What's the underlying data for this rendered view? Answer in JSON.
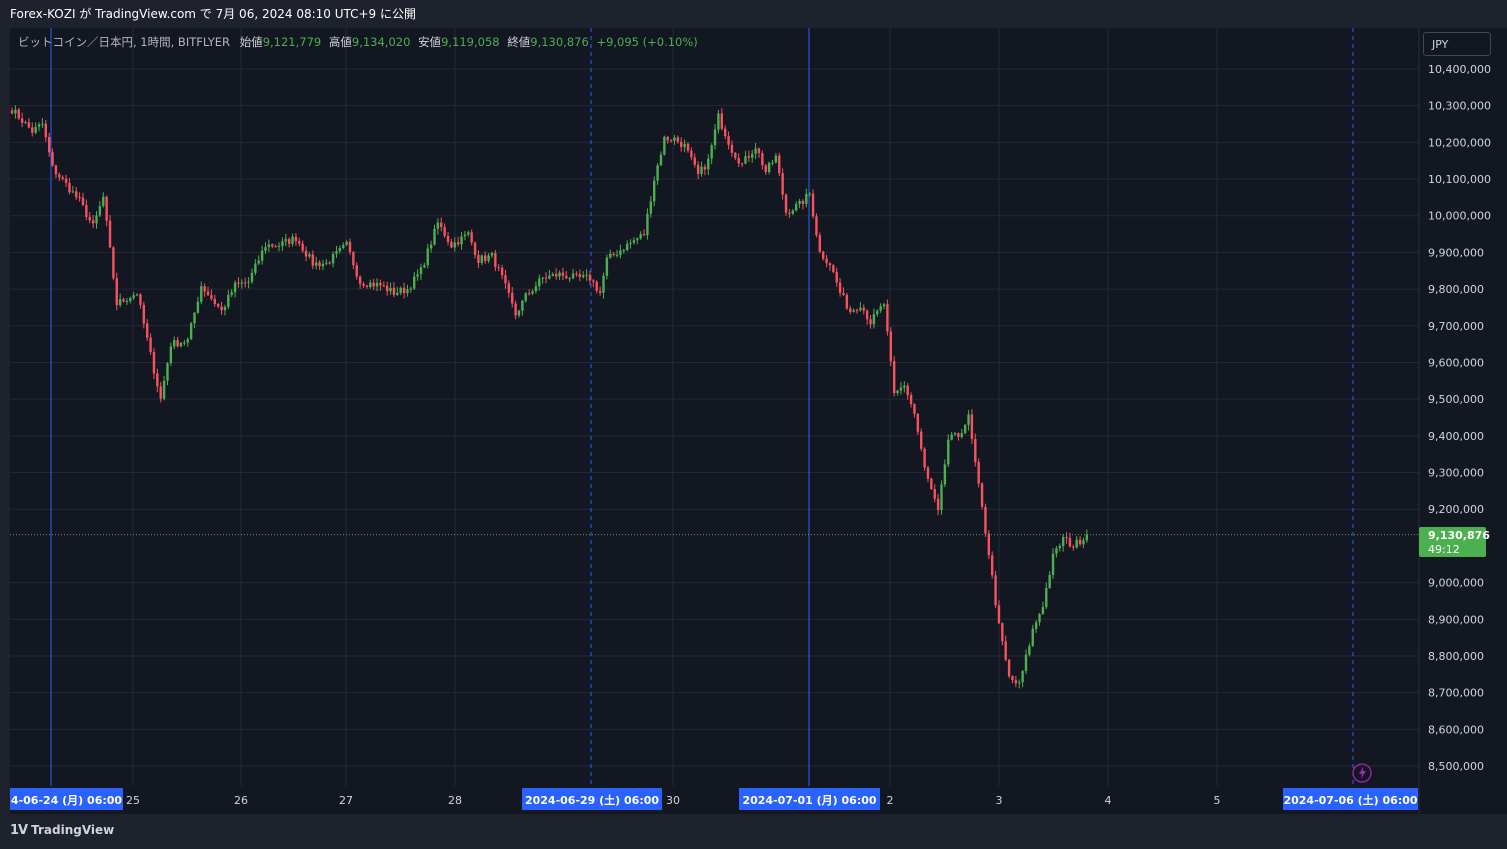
{
  "header": {
    "publish_text": "Forex-KOZI が TradingView.com で 7月 06, 2024 08:10 UTC+9 に公開"
  },
  "legend": {
    "symbol": "ビットコイン／日本円, 1時間, BITFLYER",
    "open_label": "始値",
    "open": "9,121,779",
    "high_label": "高値",
    "high": "9,134,020",
    "low_label": "安値",
    "low": "9,119,058",
    "close_label": "終値",
    "close": "9,130,876",
    "change": "+9,095 (+0.10%)"
  },
  "currency_button": "JPY",
  "price_tag": {
    "price": "9,130,876",
    "countdown": "49:12"
  },
  "footer": {
    "logo_text": "TradingView"
  },
  "colors": {
    "up": "#4caf50",
    "down": "#f7525f",
    "background": "#131722",
    "panel": "#1e222d",
    "grid": "#242832",
    "session_line": "#2962ff",
    "date_badge": "#2962ff",
    "price_tag": "#4caf50"
  },
  "chart_data": {
    "type": "candlestick",
    "interval": "1時間",
    "ylim": [
      8450000,
      10450000
    ],
    "y_ticks": [
      "10,400,000",
      "10,300,000",
      "10,200,000",
      "10,100,000",
      "10,000,000",
      "9,900,000",
      "9,800,000",
      "9,700,000",
      "9,600,000",
      "9,500,000",
      "9,400,000",
      "9,300,000",
      "9,200,000",
      "9,000,000",
      "8,900,000",
      "8,800,000",
      "8,700,000",
      "8,600,000",
      "8,500,000"
    ],
    "x_ticks": [
      "25",
      "26",
      "27",
      "28",
      "30",
      "2",
      "3",
      "4",
      "5"
    ],
    "date_badges": [
      "4-06-24 (月)   06:00",
      "2024-06-29 (土)   06:00",
      "2024-07-01 (月)   06:00",
      "2024-07-06 (土)   06:00"
    ],
    "last_price": 9130876,
    "close_path": [
      [
        0,
        10290000
      ],
      [
        6,
        10230000
      ],
      [
        9,
        10250000
      ],
      [
        12,
        10130000
      ],
      [
        20,
        10040000
      ],
      [
        24,
        9970000
      ],
      [
        27,
        10050000
      ],
      [
        31,
        9760000
      ],
      [
        37,
        9790000
      ],
      [
        41,
        9620000
      ],
      [
        44,
        9500000
      ],
      [
        47,
        9650000
      ],
      [
        52,
        9660000
      ],
      [
        56,
        9810000
      ],
      [
        62,
        9740000
      ],
      [
        66,
        9810000
      ],
      [
        70,
        9820000
      ],
      [
        75,
        9920000
      ],
      [
        79,
        9920000
      ],
      [
        84,
        9940000
      ],
      [
        89,
        9870000
      ],
      [
        93,
        9870000
      ],
      [
        99,
        9920000
      ],
      [
        103,
        9820000
      ],
      [
        109,
        9810000
      ],
      [
        113,
        9790000
      ],
      [
        117,
        9800000
      ],
      [
        121,
        9850000
      ],
      [
        126,
        9980000
      ],
      [
        130,
        9920000
      ],
      [
        135,
        9950000
      ],
      [
        138,
        9880000
      ],
      [
        142,
        9890000
      ],
      [
        145,
        9830000
      ],
      [
        149,
        9730000
      ],
      [
        152,
        9780000
      ],
      [
        157,
        9830000
      ],
      [
        162,
        9840000
      ],
      [
        167,
        9830000
      ],
      [
        171,
        9830000
      ],
      [
        174,
        9790000
      ],
      [
        176,
        9880000
      ],
      [
        182,
        9920000
      ],
      [
        187,
        9950000
      ],
      [
        190,
        10100000
      ],
      [
        193,
        10210000
      ],
      [
        196,
        10210000
      ],
      [
        199,
        10190000
      ],
      [
        203,
        10110000
      ],
      [
        206,
        10150000
      ],
      [
        209,
        10270000
      ],
      [
        213,
        10180000
      ],
      [
        216,
        10140000
      ],
      [
        220,
        10190000
      ],
      [
        223,
        10120000
      ],
      [
        226,
        10160000
      ],
      [
        229,
        10010000
      ],
      [
        233,
        10030000
      ],
      [
        236,
        10060000
      ],
      [
        239,
        9900000
      ],
      [
        242,
        9870000
      ],
      [
        245,
        9790000
      ],
      [
        248,
        9740000
      ],
      [
        251,
        9760000
      ],
      [
        254,
        9710000
      ],
      [
        258,
        9760000
      ],
      [
        261,
        9510000
      ],
      [
        264,
        9540000
      ],
      [
        267,
        9460000
      ],
      [
        270,
        9310000
      ],
      [
        274,
        9190000
      ],
      [
        277,
        9390000
      ],
      [
        280,
        9400000
      ],
      [
        283,
        9450000
      ],
      [
        286,
        9260000
      ],
      [
        289,
        9080000
      ],
      [
        292,
        8880000
      ],
      [
        295,
        8740000
      ],
      [
        298,
        8720000
      ],
      [
        302,
        8870000
      ],
      [
        305,
        8940000
      ],
      [
        308,
        9070000
      ],
      [
        311,
        9120000
      ],
      [
        314,
        9100000
      ],
      [
        318,
        9130876
      ]
    ]
  }
}
